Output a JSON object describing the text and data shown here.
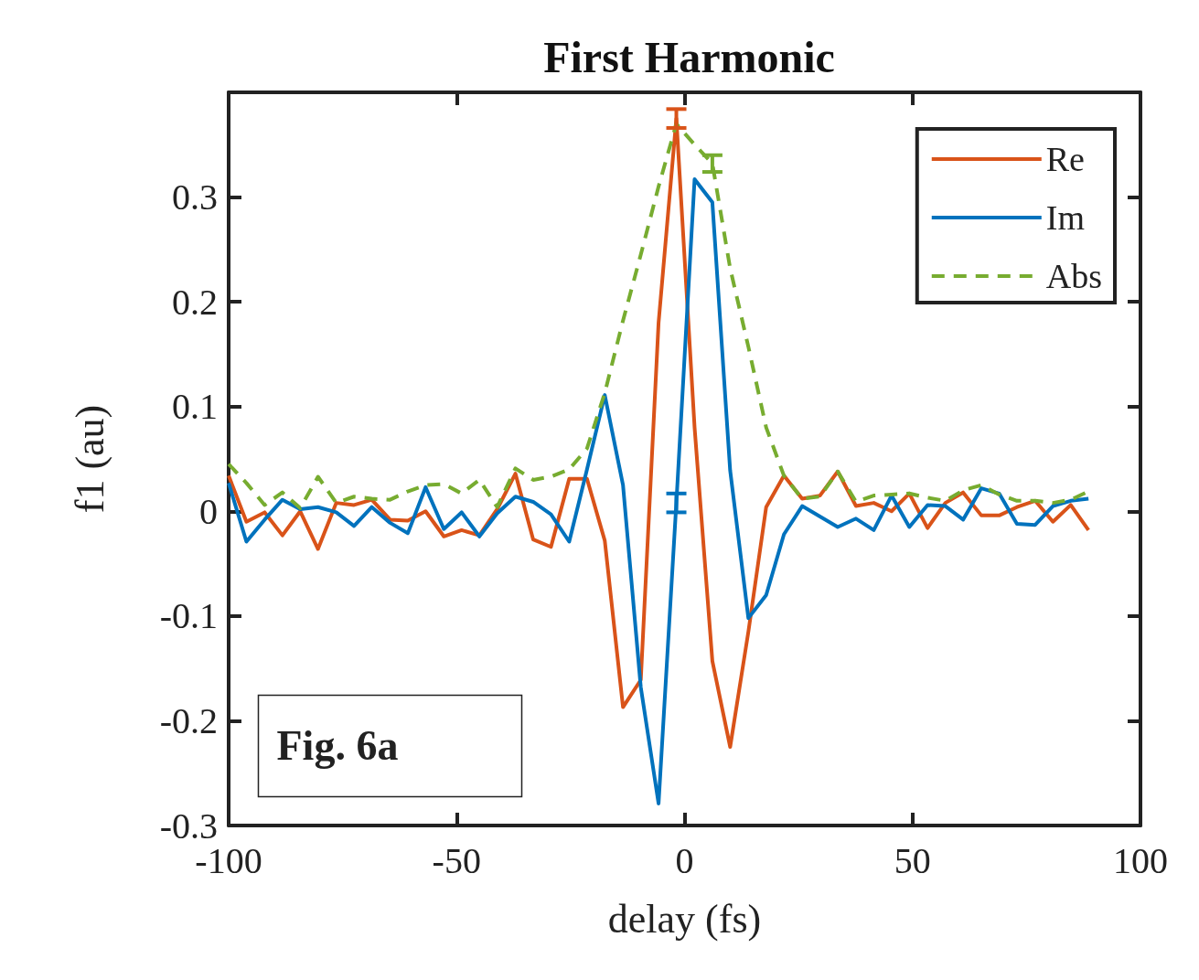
{
  "chart_data": {
    "type": "line",
    "title": "First Harmonic",
    "xlabel": "delay (fs)",
    "ylabel": "f1 (au)",
    "x": [
      -100,
      -96.1,
      -92.1,
      -88.2,
      -84.3,
      -80.4,
      -76.4,
      -72.5,
      -68.6,
      -64.6,
      -60.7,
      -56.8,
      -52.8,
      -48.9,
      -45.0,
      -41.1,
      -37.1,
      -33.2,
      -29.3,
      -25.3,
      -21.4,
      -17.5,
      -13.5,
      -9.6,
      -5.7,
      -1.8,
      2.2,
      6.1,
      10.0,
      14.0,
      17.9,
      21.8,
      25.8,
      29.7,
      33.6,
      37.6,
      41.5,
      45.4,
      49.3,
      53.3,
      57.2,
      61.1,
      65.1,
      69.0,
      72.9,
      76.9,
      80.8,
      84.7,
      88.6
    ],
    "series": [
      {
        "name": "Re",
        "color": "#d95319",
        "line_style": "solid",
        "values": [
          0.034,
          -0.01,
          -0.001,
          -0.023,
          0,
          -0.036,
          0.008,
          0.006,
          0.011,
          -0.008,
          -0.009,
          0,
          -0.024,
          -0.018,
          -0.023,
          0.002,
          0.036,
          -0.027,
          -0.034,
          0.031,
          0.031,
          -0.028,
          -0.187,
          -0.161,
          0.18,
          0.375,
          0.08,
          -0.143,
          -0.225,
          -0.115,
          0.004,
          0.034,
          0.012,
          0.015,
          0.038,
          0.005,
          0.008,
          0,
          0.017,
          -0.016,
          0.008,
          0.018,
          -0.004,
          -0.004,
          0.004,
          0.01,
          -0.01,
          0.006,
          -0.018
        ],
        "errors": [
          null,
          null,
          null,
          null,
          null,
          null,
          null,
          null,
          null,
          null,
          null,
          null,
          null,
          null,
          null,
          null,
          null,
          null,
          null,
          null,
          null,
          null,
          null,
          null,
          null,
          0.009,
          null,
          null,
          null,
          null,
          null,
          null,
          null,
          null,
          null,
          null,
          null,
          null,
          null,
          null,
          null,
          null,
          null,
          null,
          null,
          null,
          null,
          null,
          null
        ]
      },
      {
        "name": "Im",
        "color": "#0072bd",
        "line_style": "solid",
        "values": [
          0.027,
          -0.029,
          -0.008,
          0.011,
          0.002,
          0.004,
          -0.001,
          -0.014,
          0.004,
          -0.011,
          -0.021,
          0.023,
          -0.017,
          -0.001,
          -0.024,
          -0.002,
          0.014,
          0.009,
          -0.003,
          -0.029,
          0.04,
          0.111,
          0.025,
          -0.168,
          -0.279,
          0.008,
          0.317,
          0.295,
          0.039,
          -0.102,
          -0.08,
          -0.022,
          0.005,
          -0.005,
          -0.015,
          -0.007,
          -0.018,
          0.015,
          -0.015,
          0.006,
          0.005,
          -0.008,
          0.022,
          0.017,
          -0.012,
          -0.013,
          0.005,
          0.01,
          0.012
        ],
        "errors": [
          null,
          null,
          null,
          null,
          null,
          null,
          null,
          null,
          null,
          null,
          null,
          null,
          null,
          null,
          null,
          null,
          null,
          null,
          null,
          null,
          null,
          null,
          null,
          null,
          null,
          0.009,
          null,
          null,
          null,
          null,
          null,
          null,
          null,
          null,
          null,
          null,
          null,
          null,
          null,
          null,
          null,
          null,
          null,
          null,
          null,
          null,
          null,
          null,
          null
        ]
      },
      {
        "name": "Abs",
        "color": "#77ac30",
        "line_style": "dashed",
        "values": [
          0.045,
          0.027,
          0.006,
          0.018,
          0.003,
          0.033,
          0.008,
          0.014,
          0.012,
          0.011,
          0.019,
          0.025,
          0.026,
          0.017,
          0.03,
          0.004,
          0.041,
          0.03,
          0.033,
          0.04,
          0.06,
          0.113,
          0.182,
          0.245,
          0.31,
          0.37,
          0.35,
          0.332,
          0.232,
          0.157,
          0.08,
          0.034,
          0.012,
          0.014,
          0.038,
          0.009,
          0.015,
          0.016,
          0.017,
          0.013,
          0.01,
          0.02,
          0.025,
          0.016,
          0.01,
          0.01,
          0.008,
          0.011,
          0.019
        ],
        "errors": [
          null,
          null,
          null,
          null,
          null,
          null,
          null,
          null,
          null,
          null,
          null,
          null,
          null,
          null,
          null,
          null,
          null,
          null,
          null,
          null,
          null,
          null,
          null,
          null,
          null,
          null,
          null,
          0.008,
          null,
          null,
          null,
          null,
          null,
          null,
          null,
          null,
          null,
          null,
          null,
          null,
          null,
          null,
          null,
          null,
          null,
          null,
          null,
          null,
          null
        ]
      }
    ],
    "xlim": [
      -100,
      100
    ],
    "xticks": [
      -100,
      -50,
      0,
      50,
      100
    ],
    "ylim": [
      -0.3,
      0.4
    ],
    "yticks": [
      -0.3,
      -0.2,
      -0.1,
      0,
      0.1,
      0.2,
      0.3
    ],
    "grid": false,
    "legend": "top right",
    "marker": "none",
    "annotations": [
      "Fig. 6a"
    ]
  }
}
